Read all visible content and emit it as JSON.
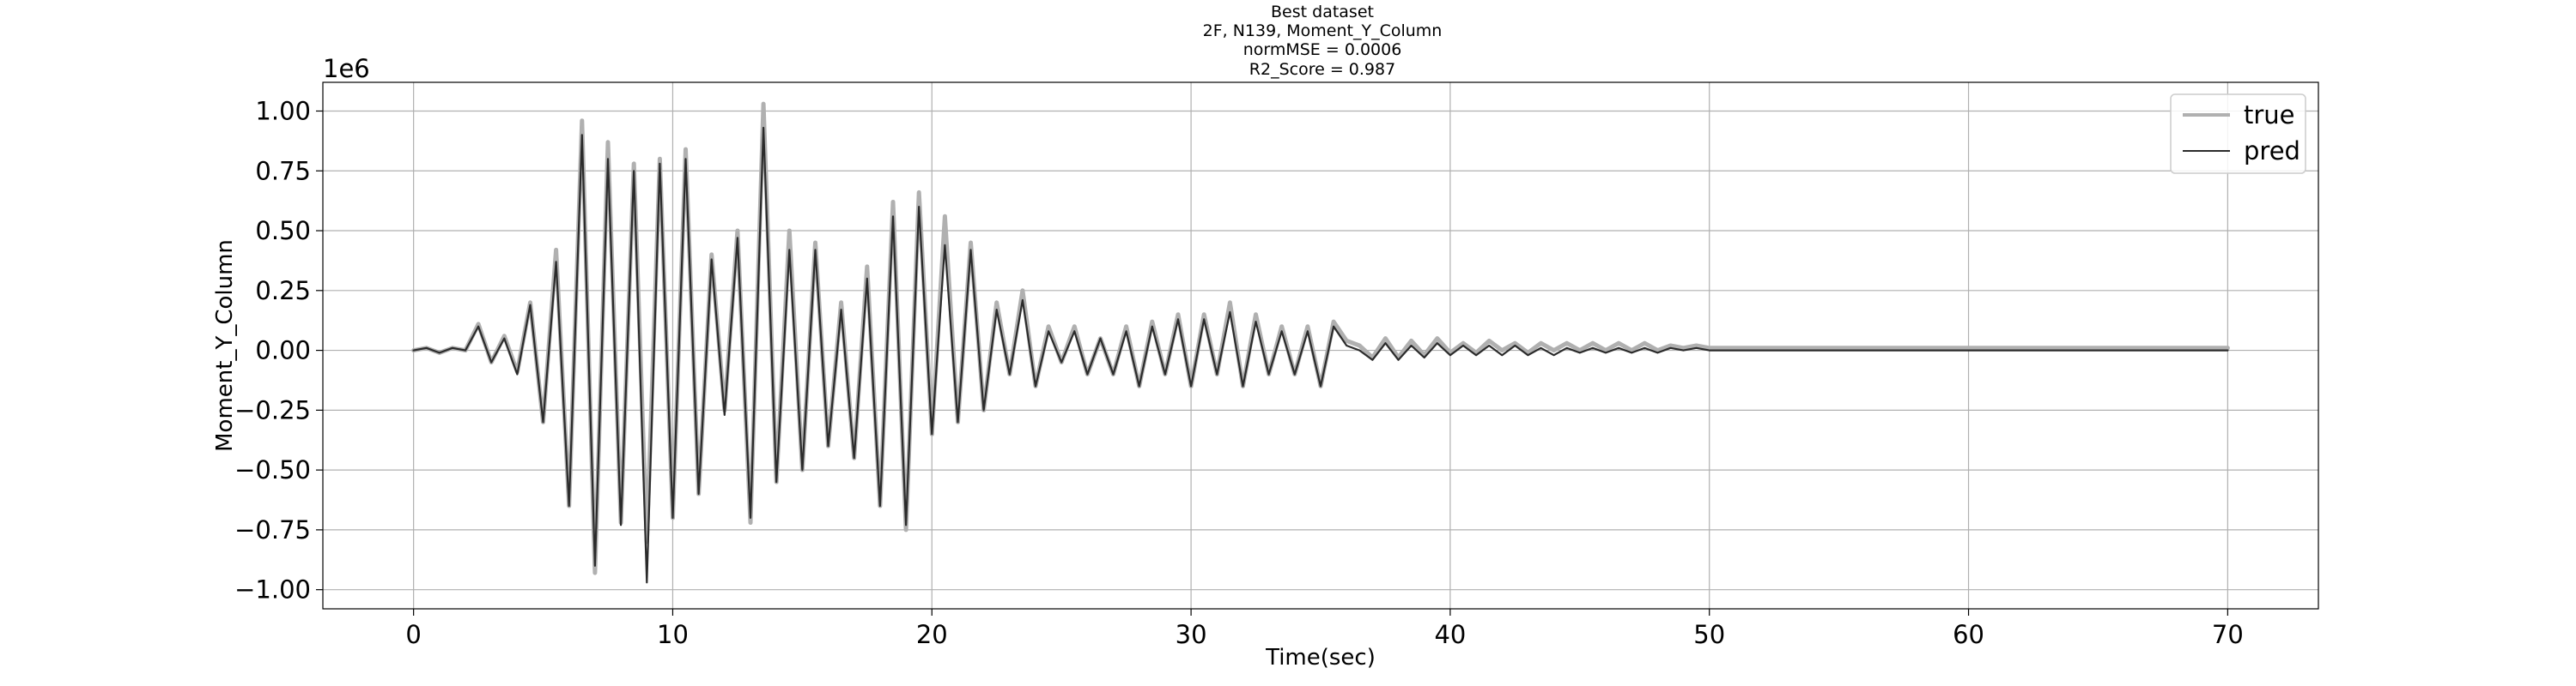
{
  "chart_data": {
    "type": "line",
    "title_lines": [
      "Best dataset",
      "2F, N139, Moment_Y_Column",
      "normMSE = 0.0006",
      "R2_Score = 0.987"
    ],
    "xlabel": "Time(sec)",
    "ylabel": "Moment_Y_Column",
    "y_offset_label": "1e6",
    "y_scale": 1000000,
    "xlim": [
      -3.5,
      73.5
    ],
    "ylim": [
      -1.08,
      1.12
    ],
    "x_ticks": [
      0,
      10,
      20,
      30,
      40,
      50,
      60,
      70
    ],
    "x_tick_labels": [
      "0",
      "10",
      "20",
      "30",
      "40",
      "50",
      "60",
      "70"
    ],
    "y_ticks": [
      1.0,
      0.75,
      0.5,
      0.25,
      0.0,
      -0.25,
      -0.5,
      -0.75,
      -1.0
    ],
    "y_tick_labels": [
      "1.00",
      "0.75",
      "0.50",
      "0.25",
      "0.00",
      "−0.25",
      "−0.50",
      "−0.75",
      "−1.00"
    ],
    "grid": true,
    "legend_position": "top-right",
    "series": [
      {
        "name": "true",
        "color": "#b0b0b0",
        "x": [
          0,
          0.5,
          1,
          1.5,
          2,
          2.5,
          3,
          3.5,
          4,
          4.5,
          5,
          5.5,
          6,
          6.5,
          7,
          7.5,
          8,
          8.5,
          9,
          9.5,
          10,
          10.5,
          11,
          11.5,
          12,
          12.5,
          13,
          13.5,
          14,
          14.5,
          15,
          15.5,
          16,
          16.5,
          17,
          17.5,
          18,
          18.5,
          19,
          19.5,
          20,
          20.5,
          21,
          21.5,
          22,
          22.5,
          23,
          23.5,
          24,
          24.5,
          25,
          25.5,
          26,
          26.5,
          27,
          27.5,
          28,
          28.5,
          29,
          29.5,
          30,
          30.5,
          31,
          31.5,
          32,
          32.5,
          33,
          33.5,
          34,
          34.5,
          35,
          35.5,
          36,
          36.5,
          37,
          37.5,
          38,
          38.5,
          39,
          39.5,
          40,
          40.5,
          41,
          41.5,
          42,
          42.5,
          43,
          43.5,
          44,
          44.5,
          45,
          45.5,
          46,
          46.5,
          47,
          47.5,
          48,
          48.5,
          49,
          49.5,
          50,
          51,
          52,
          53,
          54,
          55,
          56,
          57,
          58,
          59,
          60,
          61,
          62,
          63,
          64,
          65,
          66,
          67,
          68,
          69,
          70
        ],
        "values": [
          0,
          0.01,
          -0.01,
          0.01,
          0,
          0.11,
          -0.05,
          0.06,
          -0.09,
          0.2,
          -0.3,
          0.42,
          -0.65,
          0.96,
          -0.93,
          0.87,
          -0.72,
          0.78,
          -0.8,
          0.8,
          -0.7,
          0.84,
          -0.6,
          0.4,
          -0.25,
          0.5,
          -0.72,
          1.03,
          -0.55,
          0.5,
          -0.5,
          0.45,
          -0.4,
          0.2,
          -0.45,
          0.35,
          -0.65,
          0.62,
          -0.75,
          0.66,
          -0.35,
          0.56,
          -0.3,
          0.45,
          -0.25,
          0.2,
          -0.1,
          0.25,
          -0.15,
          0.1,
          -0.05,
          0.1,
          -0.1,
          0.05,
          -0.1,
          0.1,
          -0.15,
          0.12,
          -0.1,
          0.15,
          -0.15,
          0.15,
          -0.1,
          0.2,
          -0.15,
          0.15,
          -0.1,
          0.1,
          -0.1,
          0.1,
          -0.15,
          0.12,
          0.04,
          0.02,
          -0.03,
          0.05,
          -0.03,
          0.04,
          -0.02,
          0.05,
          -0.01,
          0.03,
          -0.01,
          0.04,
          0,
          0.03,
          -0.01,
          0.03,
          0,
          0.03,
          0,
          0.03,
          0,
          0.03,
          0,
          0.03,
          0,
          0.02,
          0.01,
          0.02,
          0.01,
          0.01,
          0.01,
          0.01,
          0.01,
          0.01,
          0.01,
          0.01,
          0.01,
          0.01,
          0.01,
          0.01,
          0.01,
          0.01,
          0.01,
          0.01,
          0.01,
          0.01,
          0.01,
          0.01,
          0.01
        ]
      },
      {
        "name": "pred",
        "color": "#2b2b2b",
        "x": [
          0,
          0.5,
          1,
          1.5,
          2,
          2.5,
          3,
          3.5,
          4,
          4.5,
          5,
          5.5,
          6,
          6.5,
          7,
          7.5,
          8,
          8.5,
          9,
          9.5,
          10,
          10.5,
          11,
          11.5,
          12,
          12.5,
          13,
          13.5,
          14,
          14.5,
          15,
          15.5,
          16,
          16.5,
          17,
          17.5,
          18,
          18.5,
          19,
          19.5,
          20,
          20.5,
          21,
          21.5,
          22,
          22.5,
          23,
          23.5,
          24,
          24.5,
          25,
          25.5,
          26,
          26.5,
          27,
          27.5,
          28,
          28.5,
          29,
          29.5,
          30,
          30.5,
          31,
          31.5,
          32,
          32.5,
          33,
          33.5,
          34,
          34.5,
          35,
          35.5,
          36,
          36.5,
          37,
          37.5,
          38,
          38.5,
          39,
          39.5,
          40,
          40.5,
          41,
          41.5,
          42,
          42.5,
          43,
          43.5,
          44,
          44.5,
          45,
          45.5,
          46,
          46.5,
          47,
          47.5,
          48,
          48.5,
          49,
          49.5,
          50,
          51,
          52,
          53,
          54,
          55,
          56,
          57,
          58,
          59,
          60,
          61,
          62,
          63,
          64,
          65,
          66,
          67,
          68,
          69,
          70
        ],
        "values": [
          0,
          0.01,
          -0.01,
          0.01,
          0,
          0.1,
          -0.05,
          0.05,
          -0.1,
          0.19,
          -0.3,
          0.37,
          -0.65,
          0.9,
          -0.9,
          0.8,
          -0.73,
          0.75,
          -0.97,
          0.78,
          -0.7,
          0.8,
          -0.6,
          0.38,
          -0.27,
          0.47,
          -0.7,
          0.93,
          -0.55,
          0.42,
          -0.5,
          0.42,
          -0.4,
          0.17,
          -0.45,
          0.3,
          -0.65,
          0.56,
          -0.73,
          0.6,
          -0.35,
          0.44,
          -0.3,
          0.42,
          -0.25,
          0.17,
          -0.1,
          0.21,
          -0.15,
          0.08,
          -0.05,
          0.08,
          -0.1,
          0.05,
          -0.1,
          0.08,
          -0.15,
          0.1,
          -0.1,
          0.13,
          -0.15,
          0.13,
          -0.1,
          0.16,
          -0.15,
          0.12,
          -0.1,
          0.08,
          -0.1,
          0.08,
          -0.15,
          0.1,
          0.02,
          0,
          -0.04,
          0.03,
          -0.04,
          0.02,
          -0.03,
          0.03,
          -0.02,
          0.02,
          -0.02,
          0.02,
          -0.02,
          0.02,
          -0.02,
          0.01,
          -0.02,
          0.01,
          -0.01,
          0.01,
          -0.01,
          0.01,
          -0.01,
          0.01,
          -0.01,
          0.01,
          0,
          0.01,
          0,
          0,
          0,
          0,
          0,
          0,
          0,
          0,
          0,
          0,
          0,
          0,
          0,
          0,
          0,
          0,
          0,
          0,
          0,
          0,
          0
        ]
      }
    ]
  }
}
